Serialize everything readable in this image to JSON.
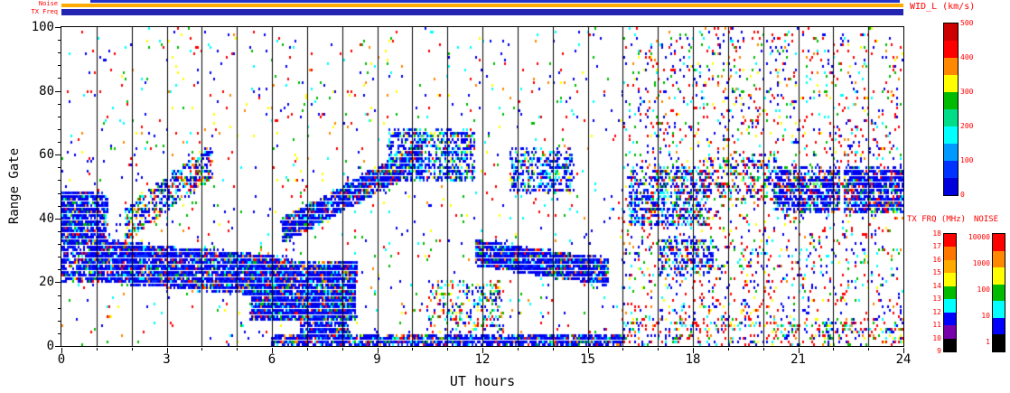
{
  "figure": {
    "bg": "#ffffff",
    "accent_red": "#ff0000"
  },
  "strip_labels": {
    "noise": "Noise",
    "tx_freq": "TX Freq"
  },
  "strips": {
    "top_line_color": "#2233cc",
    "noise_color": "#ffaa00",
    "txfreq_color": "#2424b2"
  },
  "axes": {
    "xlabel": "UT hours",
    "ylabel": "Range Gate",
    "x_ticks": [
      0,
      3,
      6,
      9,
      12,
      15,
      18,
      21,
      24
    ],
    "y_ticks": [
      0,
      20,
      40,
      60,
      80,
      100
    ],
    "x_range": [
      0,
      24
    ],
    "y_range": [
      0,
      100
    ]
  },
  "colorbars": {
    "wid": {
      "title": "WID_L (km/s)",
      "labels": [
        "500",
        "400",
        "300",
        "200",
        "100",
        "0"
      ],
      "colors_top_to_bottom": [
        "#cc0000",
        "#ff0000",
        "#ff8800",
        "#ffff00",
        "#00bb00",
        "#00dd88",
        "#00ffff",
        "#0099ff",
        "#0033ff",
        "#0000dd"
      ]
    },
    "txfrq": {
      "title": "TX FRQ (MHz)",
      "labels": [
        "18",
        "17",
        "16",
        "15",
        "14",
        "13",
        "12",
        "11",
        "10",
        "9"
      ],
      "colors_top_to_bottom": [
        "#ff0000",
        "#ff7700",
        "#ffaa00",
        "#ffff00",
        "#00bb00",
        "#00ffff",
        "#0000ff",
        "#7700aa",
        "#000000"
      ]
    },
    "noise": {
      "title": "NOISE",
      "labels": [
        "10000",
        "1000",
        "100",
        "10",
        "1"
      ],
      "colors_top_to_bottom": [
        "#ff0000",
        "#ff8800",
        "#ffff00",
        "#00bb00",
        "#00ffff",
        "#0000ff",
        "#000000"
      ]
    }
  },
  "chart_data": {
    "type": "heatmap",
    "title": "Radar range-time summary plot of perpendicular spectral width",
    "xlabel": "UT hours",
    "ylabel": "Range Gate",
    "xlim": [
      0,
      24
    ],
    "ylim": [
      0,
      100
    ],
    "value_label": "WID_L (km/s)",
    "value_range": [
      0,
      500
    ],
    "grid": "vertical lines every 1 hour",
    "legend_position": "right colorbars: WID_L 0-500 km/s, TX FRQ 9-18 MHz, NOISE 1-10000",
    "seed": 1337,
    "point_w": 2,
    "point_h": 3,
    "palettes": {
      "dense": [
        [
          "#0000ee",
          0.6
        ],
        [
          "#0033ff",
          0.18
        ],
        [
          "#00ffff",
          0.08
        ],
        [
          "#00bb00",
          0.05
        ],
        [
          "#ff0000",
          0.05
        ],
        [
          "#ff8800",
          0.04
        ]
      ],
      "dense_cyan": [
        [
          "#0000ee",
          0.5
        ],
        [
          "#0033ff",
          0.15
        ],
        [
          "#00ffff",
          0.15
        ],
        [
          "#00bb00",
          0.08
        ],
        [
          "#ff0000",
          0.07
        ],
        [
          "#ffff00",
          0.05
        ]
      ],
      "mixed_dense": [
        [
          "#0000ee",
          0.4
        ],
        [
          "#00ffff",
          0.15
        ],
        [
          "#00bb00",
          0.15
        ],
        [
          "#ff0000",
          0.15
        ],
        [
          "#ff8800",
          0.08
        ],
        [
          "#ffff00",
          0.07
        ]
      ],
      "sparse_mixed": [
        [
          "#0000ee",
          0.3
        ],
        [
          "#00ffff",
          0.15
        ],
        [
          "#00bb00",
          0.15
        ],
        [
          "#ff0000",
          0.22
        ],
        [
          "#ff8800",
          0.08
        ],
        [
          "#ffff00",
          0.1
        ]
      ],
      "red_mixed": [
        [
          "#ff0000",
          0.3
        ],
        [
          "#0000ee",
          0.3
        ],
        [
          "#00ffff",
          0.13
        ],
        [
          "#00bb00",
          0.12
        ],
        [
          "#ff8800",
          0.07
        ],
        [
          "#ffff00",
          0.08
        ]
      ]
    },
    "features": [
      {
        "type": "band",
        "t0": 0.0,
        "t1": 1.3,
        "g0": 32,
        "g1": 48,
        "n": 1000,
        "palette": "dense"
      },
      {
        "type": "band",
        "t0": 0.0,
        "t1": 0.9,
        "g0": 20,
        "g1": 32,
        "n": 280,
        "palette": "dense"
      },
      {
        "type": "diag",
        "t0": 0.8,
        "t1": 6.6,
        "gc0": 27,
        "gc1": 21,
        "gw": 13,
        "n": 3800,
        "palette": "dense"
      },
      {
        "type": "diag",
        "t0": 1.8,
        "t1": 4.3,
        "gc0": 38,
        "gc1": 58,
        "gw": 11,
        "n": 550,
        "palette": "mixed_dense"
      },
      {
        "type": "band",
        "t0": 5.4,
        "t1": 8.4,
        "g0": 8,
        "g1": 26,
        "n": 3200,
        "palette": "dense"
      },
      {
        "type": "band",
        "t0": 6.8,
        "t1": 8.2,
        "g0": 2,
        "g1": 10,
        "n": 500,
        "palette": "dense"
      },
      {
        "type": "diag",
        "t0": 6.3,
        "t1": 10.3,
        "gc0": 36,
        "gc1": 60,
        "gw": 8,
        "n": 1500,
        "palette": "dense"
      },
      {
        "type": "band",
        "t0": 9.3,
        "t1": 11.8,
        "g0": 52,
        "g1": 68,
        "n": 800,
        "palette": "dense_cyan"
      },
      {
        "type": "band",
        "t0": 6.0,
        "t1": 16.0,
        "g0": 0,
        "g1": 3,
        "n": 1400,
        "palette": "dense"
      },
      {
        "type": "diag",
        "t0": 11.8,
        "t1": 15.6,
        "gc0": 29,
        "gc1": 23,
        "gw": 8,
        "n": 1700,
        "palette": "dense"
      },
      {
        "type": "band",
        "t0": 12.8,
        "t1": 14.6,
        "g0": 48,
        "g1": 62,
        "n": 420,
        "palette": "dense_cyan"
      },
      {
        "type": "band",
        "t0": 10.4,
        "t1": 12.6,
        "g0": 4,
        "g1": 20,
        "n": 260,
        "palette": "mixed_dense"
      },
      {
        "type": "band",
        "t0": 16.2,
        "t1": 18.4,
        "g0": 38,
        "g1": 56,
        "n": 650,
        "palette": "dense_cyan"
      },
      {
        "type": "band",
        "t0": 17.0,
        "t1": 18.6,
        "g0": 22,
        "g1": 34,
        "n": 280,
        "palette": "dense_cyan"
      },
      {
        "type": "band",
        "t0": 18.4,
        "t1": 20.4,
        "g0": 46,
        "g1": 60,
        "n": 260,
        "palette": "mixed_dense"
      },
      {
        "type": "band",
        "t0": 20.3,
        "t1": 22.2,
        "g0": 42,
        "g1": 56,
        "n": 700,
        "palette": "dense"
      },
      {
        "type": "band",
        "t0": 22.3,
        "t1": 24.0,
        "g0": 42,
        "g1": 56,
        "n": 900,
        "palette": "dense"
      },
      {
        "type": "band",
        "t0": 0.0,
        "t1": 16.0,
        "g0": 0,
        "g1": 100,
        "n": 1000,
        "palette": "sparse_mixed"
      },
      {
        "type": "band",
        "t0": 16.0,
        "t1": 24.0,
        "g0": 0,
        "g1": 100,
        "n": 2000,
        "palette": "red_mixed"
      },
      {
        "type": "band",
        "t0": 16.0,
        "t1": 24.0,
        "g0": 0,
        "g1": 8,
        "n": 300,
        "palette": "red_mixed"
      }
    ]
  }
}
